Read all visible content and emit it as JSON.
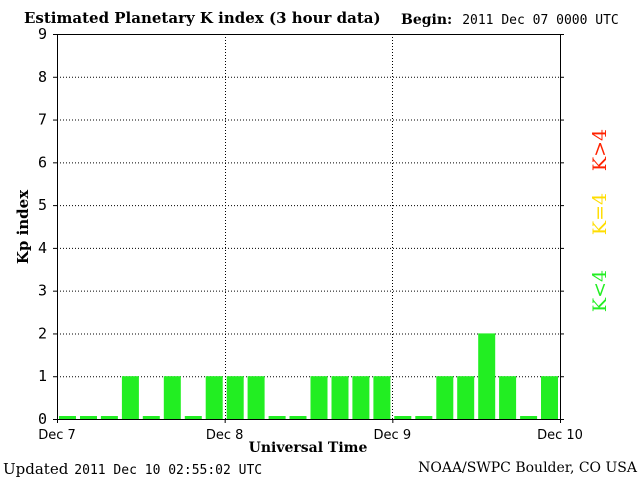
{
  "header": {
    "title": "Estimated Planetary K index (3 hour data)",
    "begin_label": "Begin:",
    "begin_value": "2011 Dec 07 0000 UTC"
  },
  "legend": {
    "storm": "K>4",
    "active": "K=4",
    "quiet": "K<4"
  },
  "footer": {
    "updated_label": "Updated",
    "updated_value": "2011 Dec 10 02:55:02 UTC",
    "credit": "NOAA/SWPC Boulder, CO USA"
  },
  "colors": {
    "quiet": "#22ee22",
    "active": "#ffdd00",
    "storm": "#ff2200",
    "grid": "#000000"
  },
  "chart_data": {
    "type": "bar",
    "title": "Estimated Planetary K index (3 hour data)",
    "xlabel": "Universal Time",
    "ylabel": "Kp index",
    "ylim": [
      0,
      9
    ],
    "yticks": [
      "0",
      "1",
      "2",
      "3",
      "4",
      "5",
      "6",
      "7",
      "8",
      "9"
    ],
    "xticks": [
      "Dec 7",
      "Dec 8",
      "Dec 9",
      "Dec 10"
    ],
    "grid": true,
    "series": [
      {
        "values": [
          0,
          0,
          0,
          1,
          0,
          1,
          0,
          1,
          1,
          1,
          0,
          0,
          1,
          1,
          1,
          1,
          0,
          0,
          1,
          1,
          2,
          1,
          0,
          1
        ]
      }
    ]
  }
}
